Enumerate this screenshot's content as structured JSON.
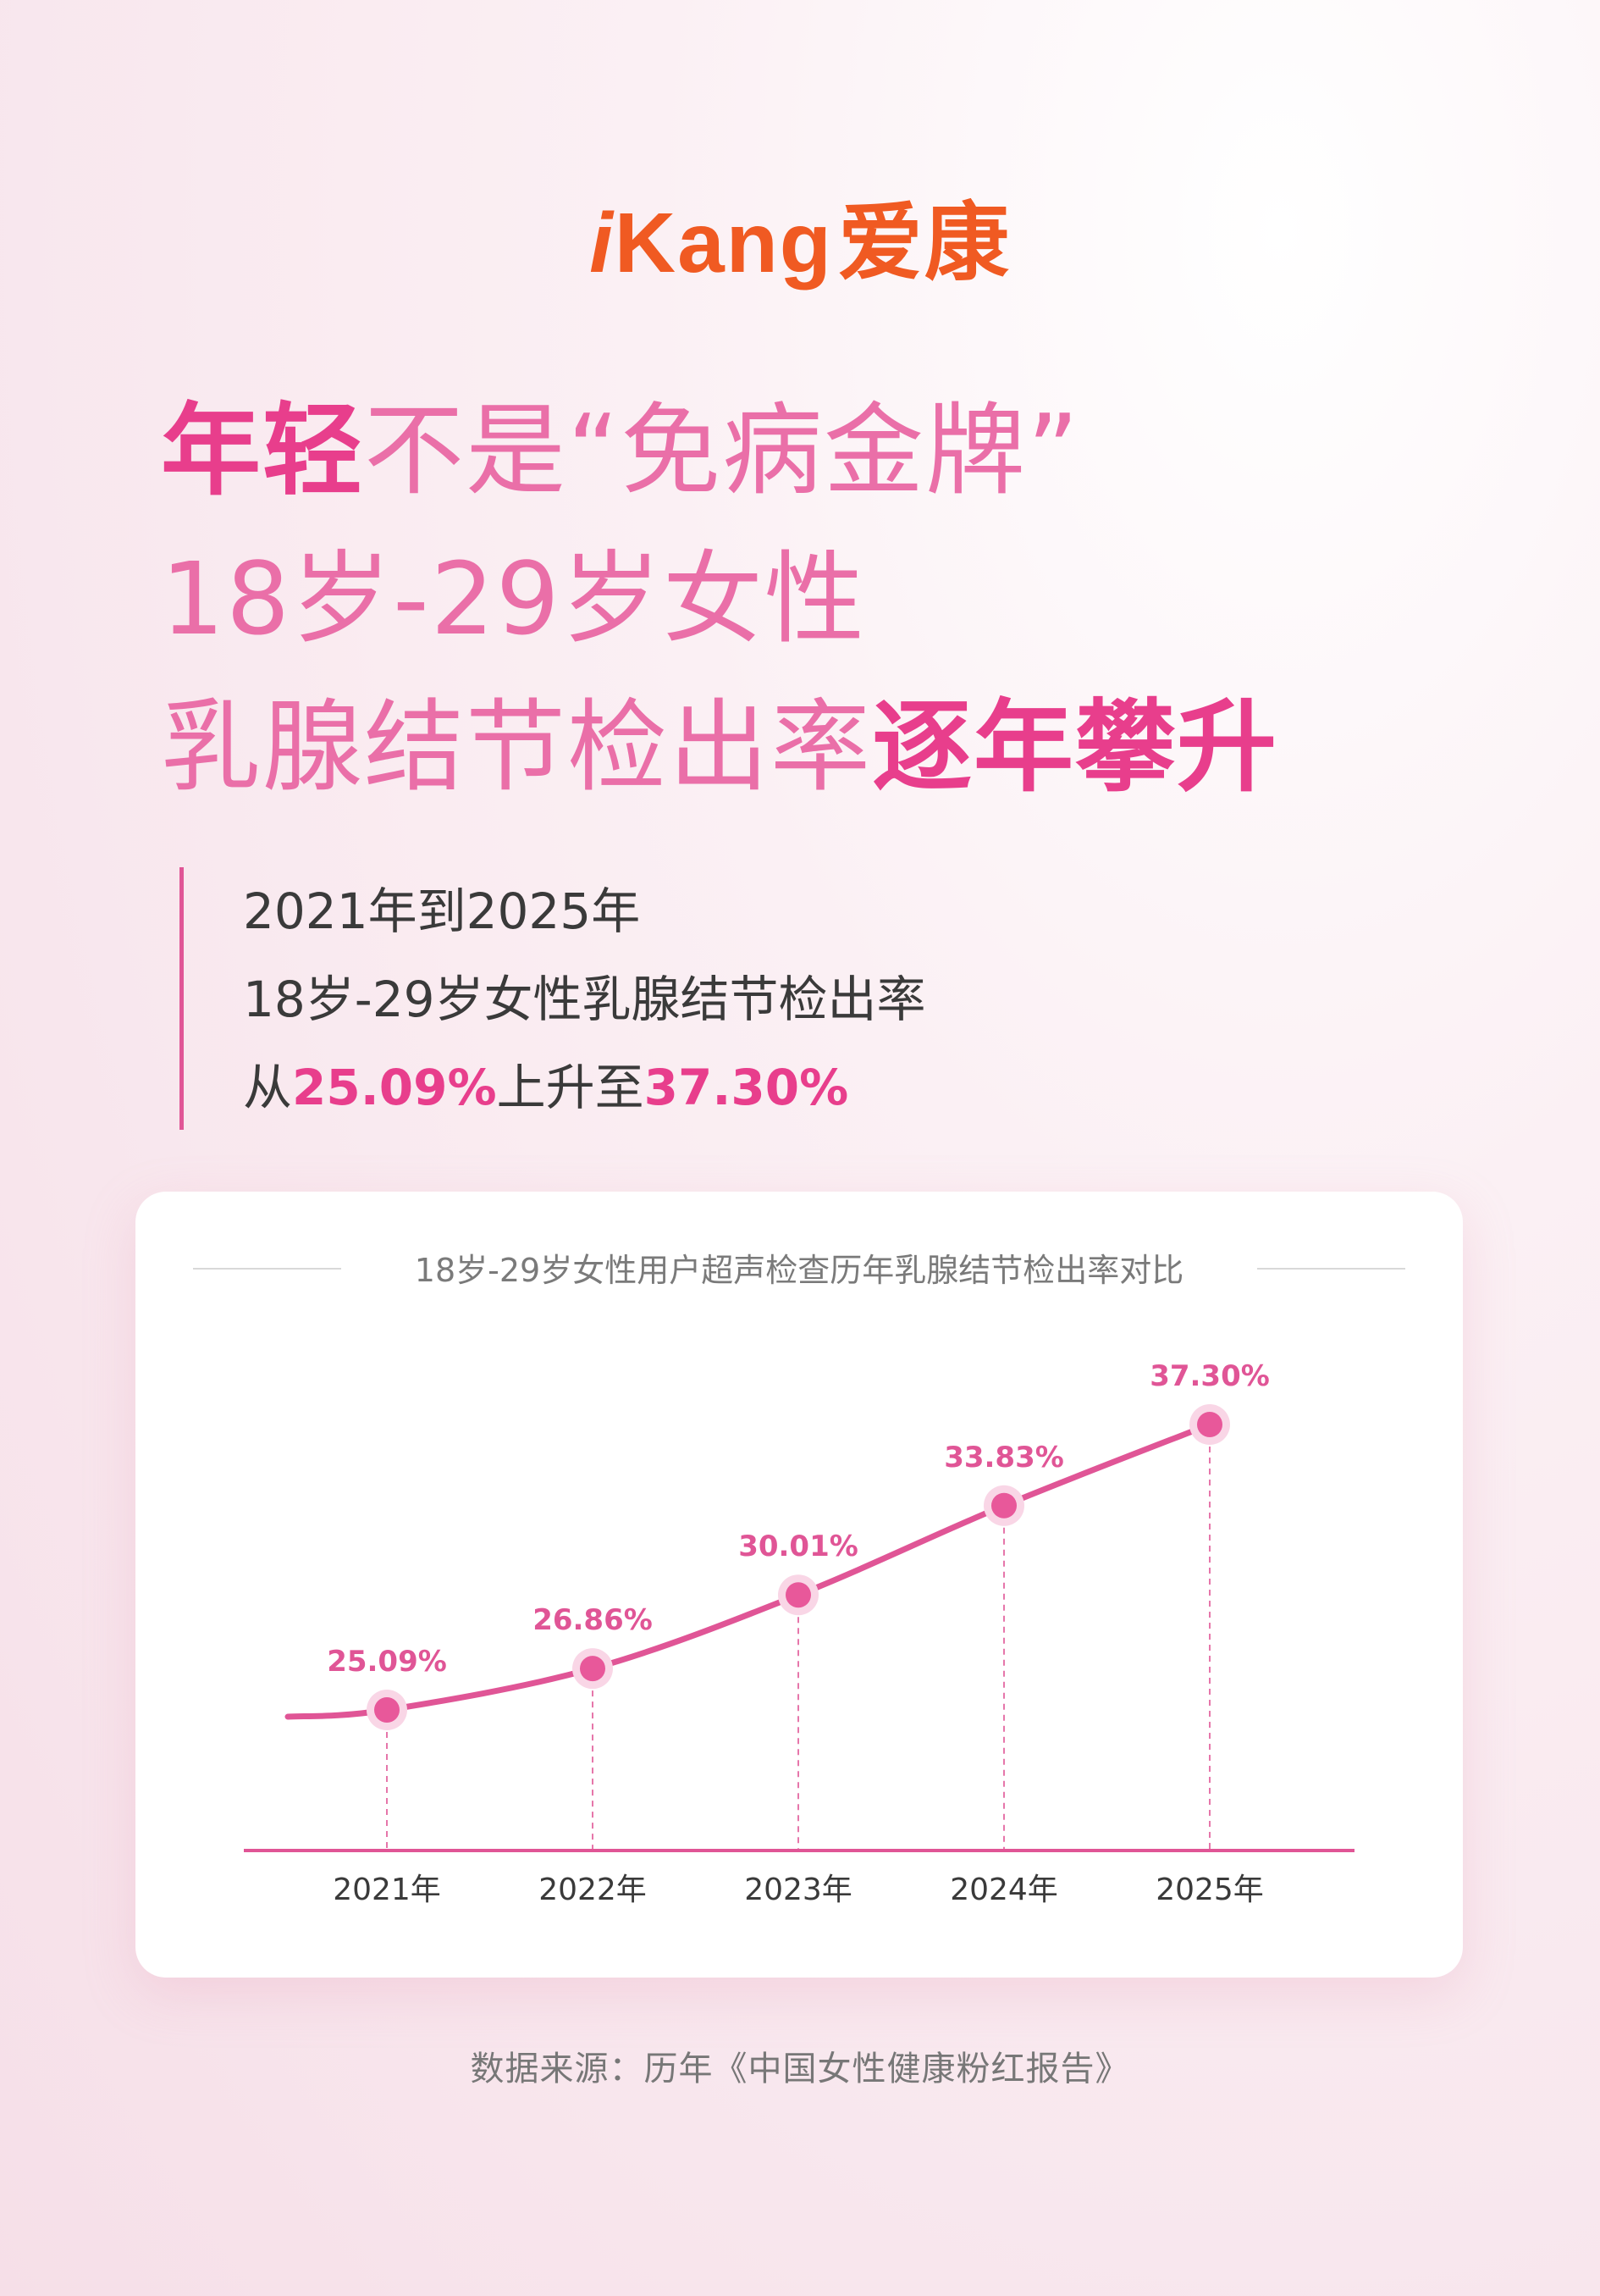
{
  "brand": {
    "latin_i": "i",
    "latin_rest": "Kang",
    "cn": "爱康"
  },
  "headline": {
    "line1_em": "年轻",
    "line1_rest": "不是“免病金牌”",
    "line2": "18岁-29岁女性",
    "line3_rest": "乳腺结节检出率",
    "line3_em": "逐年攀升"
  },
  "summary": {
    "line1": "2021年到2025年",
    "line2": "18岁-29岁女性乳腺结节检出率",
    "line3_a": "从",
    "line3_b": "25.09%",
    "line3_c": "上升至",
    "line3_d": "37.30%"
  },
  "chart_data": {
    "type": "line",
    "title": "18岁-29岁女性用户超声检查历年乳腺结节检出率对比",
    "categories": [
      "2021年",
      "2022年",
      "2023年",
      "2024年",
      "2025年"
    ],
    "values": [
      25.09,
      26.86,
      30.01,
      33.83,
      37.3
    ],
    "labels": [
      "25.09%",
      "26.86%",
      "30.01%",
      "33.83%",
      "37.30%"
    ],
    "unit": "%",
    "grid": false,
    "colors": {
      "line": "#e05596",
      "point": "#e8589a",
      "halo": "#f9d6e6",
      "label": "#e05596"
    }
  },
  "source": "数据来源：历年《中国女性健康粉红报告》"
}
